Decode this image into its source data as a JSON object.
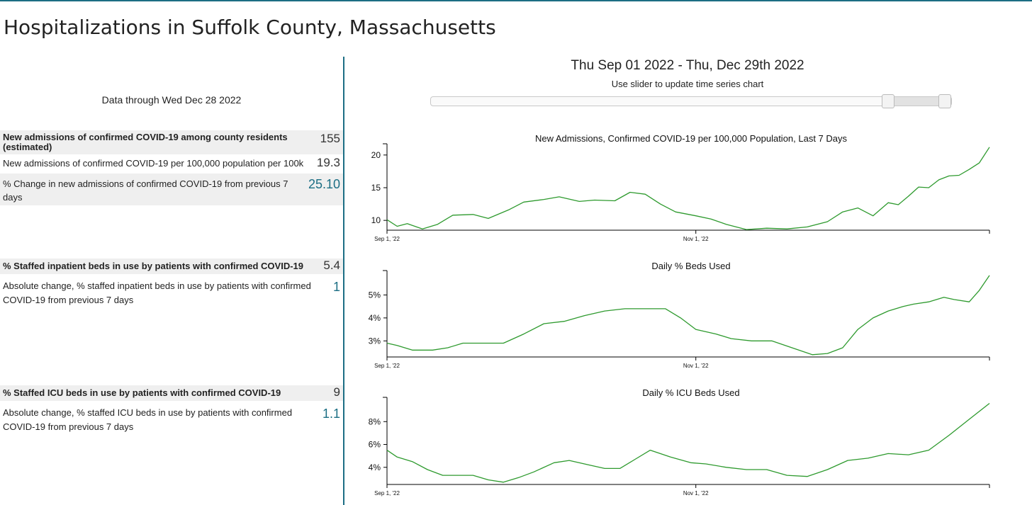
{
  "page": {
    "title": "Hospitalizations in Suffolk County, Massachusetts"
  },
  "left": {
    "data_through": "Data through Wed Dec 28 2022",
    "admissions": {
      "header_label": "New admissions of confirmed COVID-19 among county residents (estimated)",
      "header_value": "155",
      "per100k_label": "New admissions of confirmed COVID-19 per 100,000 population per 100k",
      "per100k_value": "19.3",
      "change_label": "% Change in new admissions of confirmed COVID-19 from previous 7 days",
      "change_value": "25.10"
    },
    "inpatient": {
      "header_label": "% Staffed inpatient beds in use by patients with confirmed COVID-19",
      "header_value": "5.4",
      "change_label": "Absolute change, % staffed inpatient beds in use by patients with confirmed COVID-19 from previous 7 days",
      "change_value": "1"
    },
    "icu": {
      "header_label": "% Staffed ICU beds in use by patients with confirmed COVID-19",
      "header_value": "9",
      "change_label": "Absolute change, % staffed ICU beds in use by patients with confirmed COVID-19 from previous 7 days",
      "change_value": "1.1"
    }
  },
  "controls": {
    "range_title": "Thu Sep 01 2022 - Thu, Dec 29th 2022",
    "slider_hint": "Use slider to update time series chart"
  },
  "colors": {
    "accent": "#1c6e84",
    "line": "#2e9a2e",
    "shade": "#efefef"
  },
  "chart_data": [
    {
      "type": "line",
      "title": "New Admissions, Confirmed COVID-19 per 100,000 Population, Last 7 Days",
      "x_start": "2022-09-01",
      "x_end": "2022-12-29",
      "x_ticks": [
        {
          "date": "2022-09-01",
          "label": "Sep 1, '22"
        },
        {
          "date": "2022-11-01",
          "label": "Nov 1, '22"
        }
      ],
      "ylim": [
        8.5,
        21.5
      ],
      "y_ticks": [
        10,
        15,
        20
      ],
      "y_suffix": "",
      "grid": false,
      "series": [
        {
          "x": [
            "2022-09-01",
            "2022-09-03",
            "2022-09-05",
            "2022-09-08",
            "2022-09-11",
            "2022-09-14",
            "2022-09-18",
            "2022-09-21",
            "2022-09-25",
            "2022-09-28",
            "2022-10-02",
            "2022-10-05",
            "2022-10-09",
            "2022-10-12",
            "2022-10-16",
            "2022-10-19",
            "2022-10-22",
            "2022-10-25",
            "2022-10-28",
            "2022-11-01",
            "2022-11-04",
            "2022-11-07",
            "2022-11-11",
            "2022-11-15",
            "2022-11-19",
            "2022-11-23",
            "2022-11-27",
            "2022-11-30",
            "2022-12-03",
            "2022-12-06",
            "2022-12-09",
            "2022-12-11",
            "2022-12-13",
            "2022-12-15",
            "2022-12-17",
            "2022-12-19",
            "2022-12-21",
            "2022-12-23",
            "2022-12-25",
            "2022-12-27",
            "2022-12-29"
          ],
          "y": [
            10.1,
            9.1,
            9.5,
            8.7,
            9.4,
            10.8,
            10.9,
            10.3,
            11.6,
            12.8,
            13.2,
            13.6,
            12.9,
            13.1,
            13.0,
            14.3,
            14.0,
            12.5,
            11.3,
            10.7,
            10.2,
            9.4,
            8.6,
            8.8,
            8.7,
            9.0,
            9.8,
            11.3,
            11.9,
            10.7,
            12.7,
            12.4,
            13.7,
            15.1,
            15.0,
            16.2,
            16.8,
            16.9,
            17.8,
            18.8,
            21.2
          ]
        }
      ]
    },
    {
      "type": "line",
      "title": "Daily % Beds Used",
      "x_start": "2022-09-01",
      "x_end": "2022-12-29",
      "x_ticks": [
        {
          "date": "2022-09-01",
          "label": "Sep 1, '22"
        },
        {
          "date": "2022-11-01",
          "label": "Nov 1, '22"
        }
      ],
      "ylim": [
        2.3,
        6.0
      ],
      "y_ticks": [
        3,
        4,
        5
      ],
      "y_suffix": "%",
      "grid": false,
      "series": [
        {
          "x": [
            "2022-09-01",
            "2022-09-03",
            "2022-09-06",
            "2022-09-10",
            "2022-09-13",
            "2022-09-16",
            "2022-09-20",
            "2022-09-24",
            "2022-09-28",
            "2022-10-02",
            "2022-10-06",
            "2022-10-10",
            "2022-10-14",
            "2022-10-18",
            "2022-10-22",
            "2022-10-26",
            "2022-10-29",
            "2022-11-01",
            "2022-11-05",
            "2022-11-08",
            "2022-11-12",
            "2022-11-16",
            "2022-11-20",
            "2022-11-24",
            "2022-11-27",
            "2022-11-30",
            "2022-12-03",
            "2022-12-06",
            "2022-12-09",
            "2022-12-12",
            "2022-12-14",
            "2022-12-17",
            "2022-12-20",
            "2022-12-22",
            "2022-12-25",
            "2022-12-27",
            "2022-12-29"
          ],
          "y": [
            2.9,
            2.8,
            2.6,
            2.6,
            2.7,
            2.9,
            2.9,
            2.9,
            3.3,
            3.75,
            3.85,
            4.1,
            4.3,
            4.4,
            4.4,
            4.4,
            4.0,
            3.5,
            3.3,
            3.1,
            3.0,
            3.0,
            2.7,
            2.4,
            2.45,
            2.7,
            3.5,
            4.0,
            4.3,
            4.5,
            4.6,
            4.7,
            4.9,
            4.8,
            4.7,
            5.2,
            5.85
          ]
        }
      ]
    },
    {
      "type": "line",
      "title": "Daily % ICU Beds Used",
      "x_start": "2022-09-01",
      "x_end": "2022-12-29",
      "x_ticks": [
        {
          "date": "2022-09-01",
          "label": "Sep 1, '22"
        },
        {
          "date": "2022-11-01",
          "label": "Nov 1, '22"
        }
      ],
      "ylim": [
        2.5,
        10.0
      ],
      "y_ticks": [
        4,
        6,
        8
      ],
      "y_suffix": "%",
      "grid": false,
      "series": [
        {
          "x": [
            "2022-09-01",
            "2022-09-03",
            "2022-09-06",
            "2022-09-09",
            "2022-09-12",
            "2022-09-15",
            "2022-09-18",
            "2022-09-21",
            "2022-09-24",
            "2022-09-27",
            "2022-09-30",
            "2022-10-04",
            "2022-10-07",
            "2022-10-11",
            "2022-10-14",
            "2022-10-17",
            "2022-10-20",
            "2022-10-23",
            "2022-10-27",
            "2022-10-31",
            "2022-11-03",
            "2022-11-07",
            "2022-11-11",
            "2022-11-15",
            "2022-11-19",
            "2022-11-23",
            "2022-11-27",
            "2022-12-01",
            "2022-12-05",
            "2022-12-09",
            "2022-12-13",
            "2022-12-17",
            "2022-12-21",
            "2022-12-25",
            "2022-12-29"
          ],
          "y": [
            5.5,
            4.9,
            4.5,
            3.8,
            3.3,
            3.3,
            3.3,
            2.9,
            2.7,
            3.1,
            3.6,
            4.4,
            4.6,
            4.2,
            3.9,
            3.9,
            4.7,
            5.5,
            4.9,
            4.4,
            4.3,
            4.0,
            3.8,
            3.8,
            3.3,
            3.2,
            3.8,
            4.6,
            4.8,
            5.2,
            5.1,
            5.5,
            6.8,
            8.2,
            9.6
          ]
        }
      ]
    }
  ]
}
